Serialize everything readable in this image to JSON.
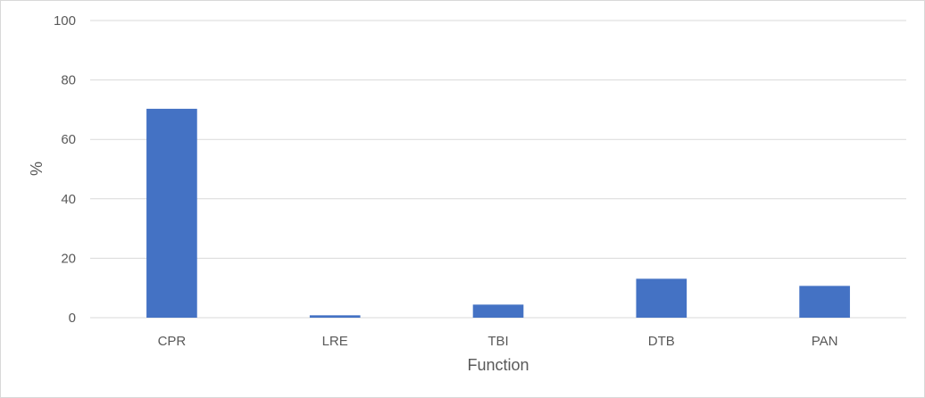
{
  "chart_data": {
    "type": "bar",
    "categories": [
      "CPR",
      "LRE",
      "TBI",
      "DTB",
      "PAN"
    ],
    "series": [
      {
        "values": [
          70.3,
          0.8,
          4.4,
          13.1,
          10.7
        ],
        "color": "#4472c4"
      }
    ],
    "title": "",
    "xlabel": "Function",
    "ylabel": "%",
    "ylim": [
      0,
      100
    ],
    "yticks": [
      0,
      20,
      40,
      60,
      80,
      100
    ],
    "grid": true,
    "legend": "none"
  }
}
